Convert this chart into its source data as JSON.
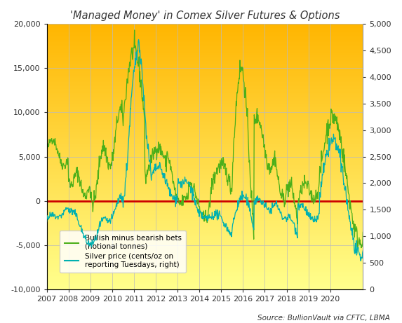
{
  "title": "'Managed Money' in Comex Silver Futures & Options",
  "source_text": "Source: BullionVault via CFTC, LBMA",
  "left_ylim": [
    -10000,
    20000
  ],
  "right_ylim": [
    0,
    5000
  ],
  "left_yticks": [
    -10000,
    -5000,
    0,
    5000,
    10000,
    15000,
    20000
  ],
  "right_yticks": [
    0,
    500,
    1000,
    1500,
    2000,
    2500,
    3000,
    3500,
    4000,
    4500,
    5000
  ],
  "xtick_labels": [
    "2007",
    "2008",
    "2009",
    "2010",
    "2011",
    "2012",
    "2013",
    "2014",
    "2015",
    "2016",
    "2017",
    "2018",
    "2019",
    "2020"
  ],
  "green_line_color": "#4caf1a",
  "cyan_line_color": "#00b0b0",
  "zero_line_color": "#cc0000",
  "legend_green": "Bullish minus bearish bets\n(notional tonnes)",
  "legend_cyan": "Silver price (cents/oz on\nreporting Tuesdays, right)",
  "title_fontsize": 10.5,
  "axis_label_fontsize": 9
}
